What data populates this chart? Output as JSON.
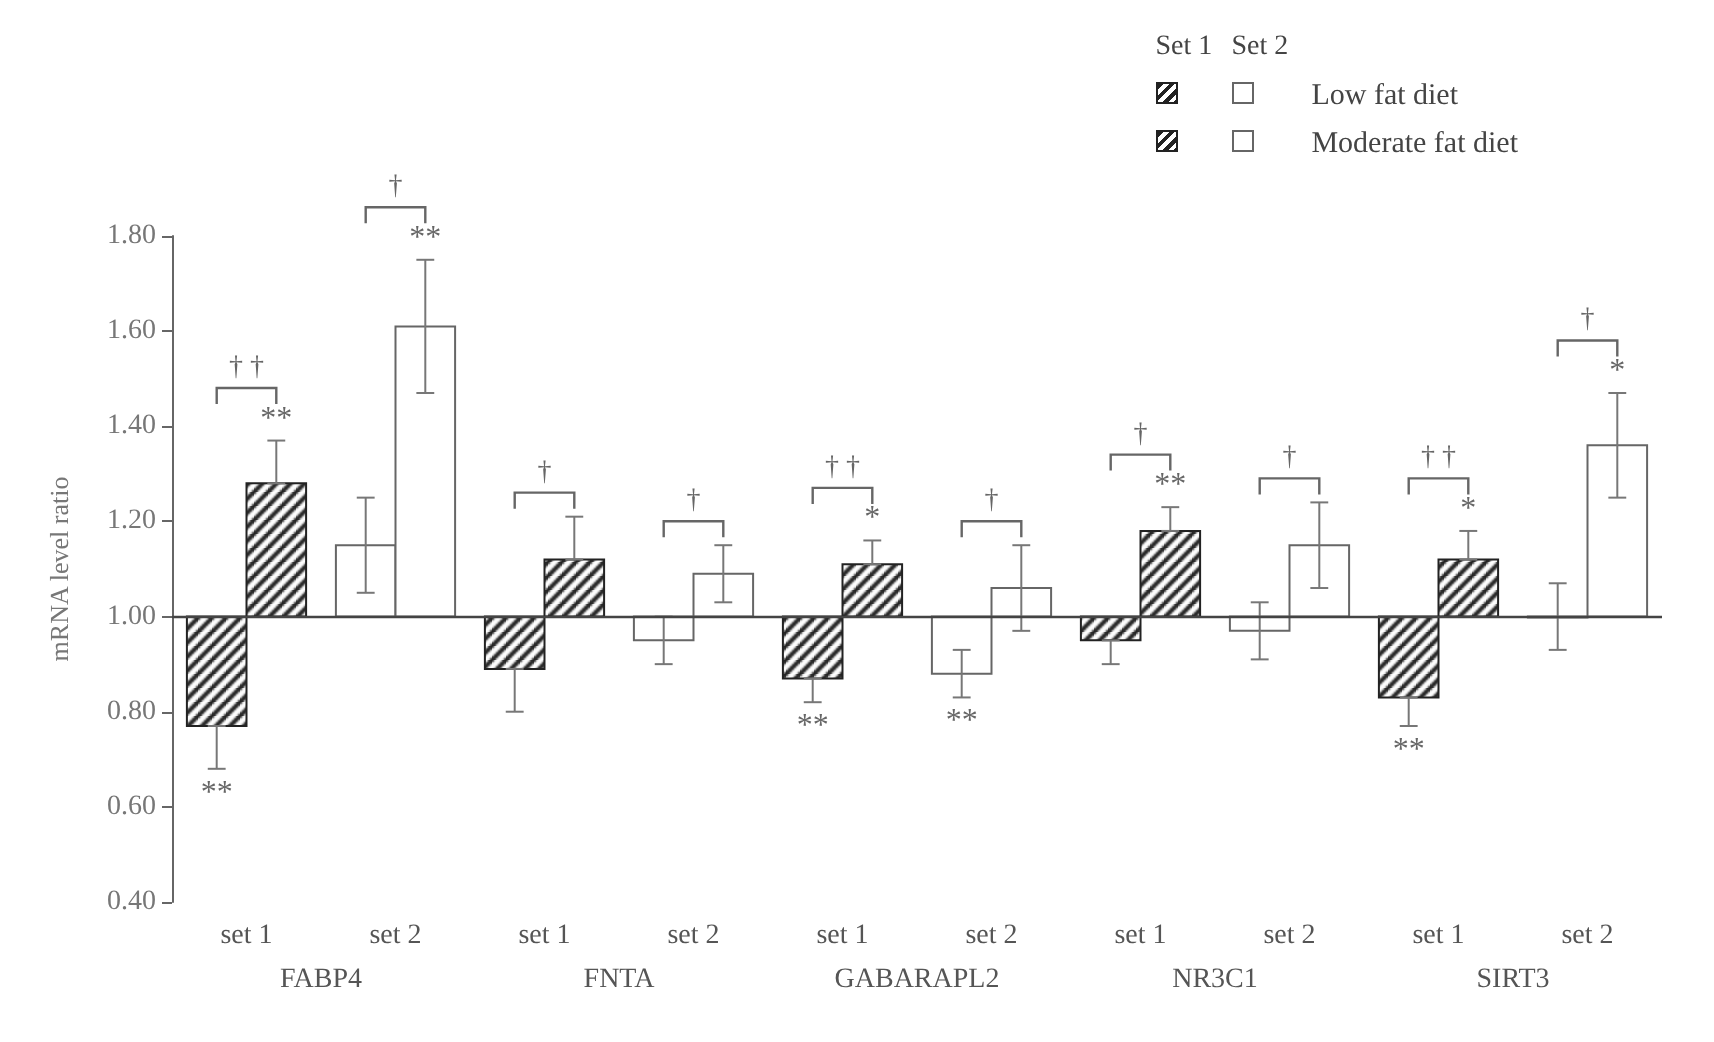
{
  "chart_data": {
    "type": "bar",
    "ylabel": "mRNA level ratio",
    "categories": [
      "set 1",
      "set 2",
      "set 1",
      "set 2",
      "set 1",
      "set 2",
      "set 1",
      "set 2",
      "set 1",
      "set 2"
    ],
    "series": [
      {
        "name": "Low fat diet",
        "colors": [
          "#222222",
          "#ffffff",
          "#222222",
          "#ffffff",
          "#222222",
          "#ffffff",
          "#222222",
          "#ffffff",
          "#222222",
          "#ffffff"
        ],
        "base": [
          1,
          1,
          1,
          1,
          1,
          1,
          1,
          1,
          1,
          1
        ],
        "values": [
          -0.23,
          0.15,
          -0.11,
          -0.05,
          -0.13,
          -0.12,
          -0.05,
          -0.03,
          -0.17,
          0.0
        ],
        "errors": [
          [
            0.68,
            0.77
          ],
          [
            1.05,
            1.25
          ],
          [
            0.8,
            0.89
          ],
          [
            0.9,
            1.0
          ],
          [
            0.82,
            0.87
          ],
          [
            0.83,
            0.93
          ],
          [
            0.9,
            0.95
          ],
          [
            0.91,
            1.03
          ],
          [
            0.77,
            0.83
          ],
          [
            0.93,
            1.07
          ]
        ],
        "value_labels": [
          "**",
          null,
          null,
          null,
          "**",
          "**",
          null,
          null,
          "**",
          null
        ]
      },
      {
        "name": "Moderate fat diet",
        "colors": [
          "#222222",
          "#ffffff",
          "#222222",
          "#ffffff",
          "#222222",
          "#ffffff",
          "#222222",
          "#ffffff",
          "#222222",
          "#ffffff"
        ],
        "base": [
          1,
          1,
          1,
          1,
          1,
          1,
          1,
          1,
          1,
          1
        ],
        "values": [
          0.28,
          0.61,
          0.12,
          0.09,
          0.11,
          0.06,
          0.18,
          0.15,
          0.12,
          0.36
        ],
        "errors": [
          [
            1.28,
            1.37
          ],
          [
            1.47,
            1.75
          ],
          [
            1.12,
            1.21
          ],
          [
            1.03,
            1.15
          ],
          [
            1.11,
            1.16
          ],
          [
            0.97,
            1.15
          ],
          [
            1.18,
            1.23
          ],
          [
            1.06,
            1.24
          ],
          [
            1.12,
            1.18
          ],
          [
            1.25,
            1.47
          ]
        ],
        "value_labels": [
          "**",
          "**",
          null,
          null,
          "*",
          null,
          "**",
          null,
          "*",
          "*"
        ]
      }
    ],
    "annotations": [
      "† †",
      "†",
      "†",
      "†",
      "† †",
      "†",
      "†",
      "†",
      "† †",
      "†",
      "FABP4",
      "FNTA",
      "GABARAPL2",
      "NR3C1",
      "SIRT3",
      "Set 1",
      "Set 2"
    ],
    "ref_lines": [
      {
        "axis": "y",
        "value": 1
      }
    ],
    "ylim": [
      0.4,
      1.8
    ],
    "yticks": [
      {
        "value": 0.4,
        "label": "0.40"
      },
      {
        "value": 0.6,
        "label": "0.60"
      },
      {
        "value": 0.8,
        "label": "0.80"
      },
      {
        "value": 1.0,
        "label": "1.00"
      },
      {
        "value": 1.2,
        "label": "1.20"
      },
      {
        "value": 1.4,
        "label": "1.40"
      },
      {
        "value": 1.6,
        "label": "1.60"
      },
      {
        "value": 1.8,
        "label": "1.80"
      }
    ],
    "legend": "top right",
    "grid": false
  }
}
